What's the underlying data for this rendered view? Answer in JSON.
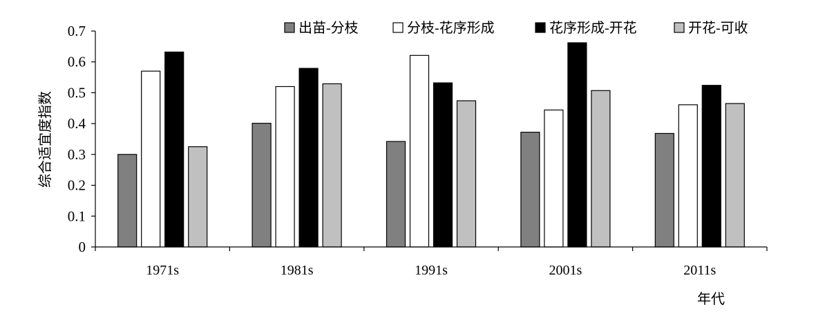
{
  "chart_data": {
    "type": "bar",
    "title": "",
    "xlabel": "年代",
    "ylabel": "综合适宜度指数",
    "ylim": [
      0,
      0.7
    ],
    "yticks": [
      "0",
      "0.1",
      "0.2",
      "0.3",
      "0.4",
      "0.5",
      "0.6",
      "0.7"
    ],
    "categories": [
      "1971s",
      "1981s",
      "1991s",
      "2001s",
      "2011s"
    ],
    "grid": false,
    "legend": "top-right",
    "series": [
      {
        "name": "出苗-分枝",
        "color": "#808080",
        "values": [
          0.3,
          0.401,
          0.342,
          0.372,
          0.368
        ]
      },
      {
        "name": "分枝-花序形成",
        "color": "#ffffff",
        "values": [
          0.57,
          0.52,
          0.621,
          0.444,
          0.461
        ]
      },
      {
        "name": "花序形成-开花",
        "color": "#000000",
        "values": [
          0.632,
          0.579,
          0.532,
          0.662,
          0.524
        ]
      },
      {
        "name": "开花-可收",
        "color": "#c0c0c0",
        "values": [
          0.325,
          0.529,
          0.474,
          0.507,
          0.465
        ]
      }
    ]
  }
}
